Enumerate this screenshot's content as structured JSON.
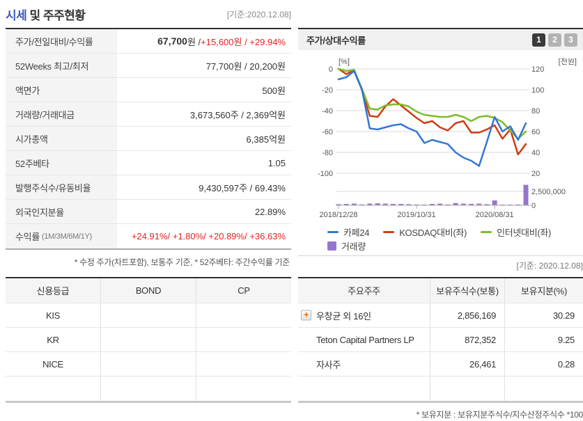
{
  "header": {
    "title_highlight": "시세",
    "title_rest": " 및 주주현황",
    "date_label": "[기준:2020.12.08]"
  },
  "icons": {
    "plus": "+"
  },
  "quote_table": {
    "rows": [
      {
        "label": "주가/전일대비/수익률",
        "value_bold": "67,700",
        "value_mid": "원 / ",
        "value_red": "+15,600원 / +29.94%"
      },
      {
        "label": "52Weeks 최고/최저",
        "value": "77,700원 / 20,200원"
      },
      {
        "label": "액면가",
        "value": "500원"
      },
      {
        "label": "거래량/거래대금",
        "value": "3,673,560주 / 2,369억원"
      },
      {
        "label": "시가총액",
        "value": "6,385억원"
      },
      {
        "label": "52주베타",
        "value": "1.05"
      },
      {
        "label": "발행주식수/유동비율",
        "value": "9,430,597주 / 69.43%"
      },
      {
        "label": "외국인지분율",
        "value": "22.89%"
      },
      {
        "label": "수익률",
        "label_small": "(1M/3M/6M/1Y)",
        "value_red": "+24.91%/ +1.80%/ +20.89%/ +36.63%"
      }
    ],
    "footnote": "* 수정 주가(차트포함), 보통주 기준, * 52주베타: 주간수익률 기준"
  },
  "chart_panel": {
    "title": "주가/상대수익률",
    "page_buttons": [
      "1",
      "2",
      "3"
    ],
    "active_button": "1",
    "caption": "[기준: 2020.12.08]"
  },
  "chart_data": {
    "type": "line+bar",
    "left_axis_label": "[%]",
    "right_axis_label": "[천원]",
    "left_ticks": [
      0,
      -20,
      -40,
      -60,
      -80,
      -100
    ],
    "right_ticks": [
      120,
      100,
      80,
      60,
      40,
      20
    ],
    "x_tick_labels": [
      "2018/12/28",
      "2019/10/31",
      "2020/08/31"
    ],
    "x_tick_indices": [
      0,
      10,
      20
    ],
    "series": [
      {
        "name": "카페24",
        "color": "#3476d4",
        "axis": "left(%)",
        "values": [
          -10,
          -8,
          -2,
          -20,
          -57,
          -58,
          -56,
          -54,
          -53,
          -57,
          -60,
          -71,
          -68,
          -70,
          -72,
          -80,
          -85,
          -88,
          -93,
          -70,
          -46,
          -60,
          -55,
          -68,
          -52
        ]
      },
      {
        "name": "KOSDAQ대비(좌)",
        "color": "#cf3c12",
        "axis": "left(%)",
        "values": [
          0,
          -5,
          -1,
          -20,
          -45,
          -46,
          -36,
          -29,
          -35,
          -41,
          -47,
          -52,
          -50,
          -56,
          -59,
          -52,
          -50,
          -61,
          -61,
          -58,
          -54,
          -67,
          -58,
          -82,
          -72
        ]
      },
      {
        "name": "인터넷대비(좌)",
        "color": "#7fba2b",
        "axis": "left(%)",
        "values": [
          0,
          -2,
          -1,
          -19,
          -38,
          -39,
          -35,
          -34,
          -34,
          -36,
          -41,
          -44,
          -45,
          -46,
          -46,
          -44,
          -46,
          -50,
          -46,
          -45,
          -47,
          -51,
          -59,
          -67,
          -60
        ]
      }
    ],
    "volume": {
      "name": "거래량",
      "color": "#9575cd",
      "max_tick": 2500000,
      "axis_labels": [
        "2,500,000",
        "0"
      ],
      "values": [
        200000,
        250000,
        300000,
        150000,
        300000,
        350000,
        300000,
        250000,
        250000,
        200000,
        150000,
        80000,
        250000,
        300000,
        150000,
        400000,
        300000,
        250000,
        300000,
        200000,
        870000,
        120000,
        80000,
        150000,
        3673560
      ]
    }
  },
  "credit_table": {
    "headers": [
      "신용등급",
      "BOND",
      "CP"
    ],
    "rows": [
      [
        "KIS",
        "",
        ""
      ],
      [
        "KR",
        "",
        ""
      ],
      [
        "NICE",
        "",
        ""
      ],
      [
        "",
        "",
        ""
      ]
    ]
  },
  "holders_table": {
    "headers": [
      "주요주주",
      "보유주식수(보통)",
      "보유지분(%)"
    ],
    "rows": [
      {
        "name": "우창균 외 16인",
        "plus": true,
        "shares": "2,856,169",
        "stake": "30.29"
      },
      {
        "name": "Teton Capital Partners LP",
        "plus": false,
        "shares": "872,352",
        "stake": "9.25"
      },
      {
        "name": "자사주",
        "plus": false,
        "shares": "26,461",
        "stake": "0.28"
      },
      {
        "name": "",
        "plus": false,
        "shares": "",
        "stake": ""
      }
    ],
    "footnote": "* 보유지분 : 보유지분주식수/지수산정주식수 *100"
  }
}
